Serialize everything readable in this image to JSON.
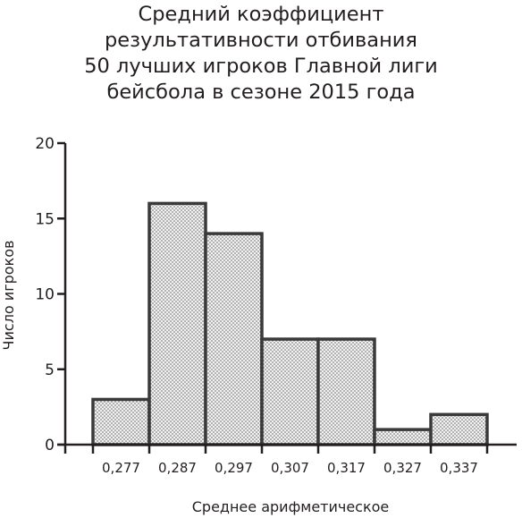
{
  "chart_data": {
    "type": "bar",
    "title_lines": [
      "Средний коэффициент",
      "результативности отбивания",
      "50 лучших игроков Главной лиги",
      "бейсбола в сезоне 2015 года"
    ],
    "categories": [
      "0,277",
      "0,287",
      "0,297",
      "0,307",
      "0,317",
      "0,327",
      "0,337"
    ],
    "values": [
      3,
      16,
      14,
      7,
      7,
      1,
      2
    ],
    "xlabel": "Среднее арифметическое",
    "ylabel": "Число игроков",
    "ylim": [
      0,
      20
    ],
    "yticks": [
      0,
      5,
      10,
      15,
      20
    ],
    "grid": false,
    "colors": {
      "bar_fill": "#f2f2f2",
      "bar_stroke": "#3a3a3a",
      "dots": "#5a5a5a",
      "axis": "#231f20"
    }
  }
}
